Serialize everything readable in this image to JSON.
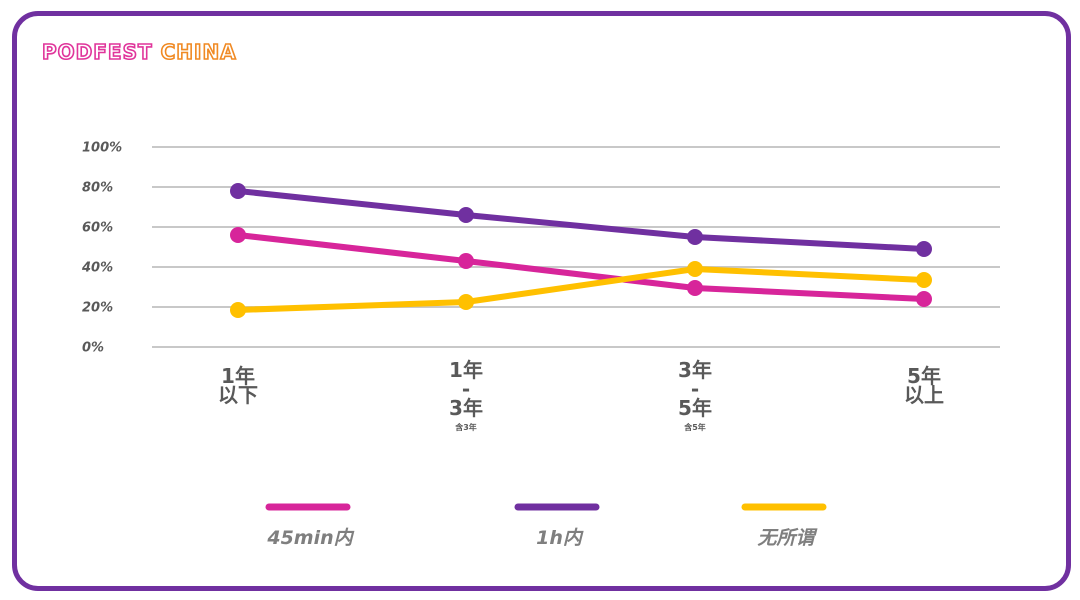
{
  "brand": {
    "part1": "PODFEST",
    "part2": "CHINA"
  },
  "colors": {
    "frame": "#7030a0",
    "brand_part1": "#e0359b",
    "brand_part2": "#f08a24",
    "grid": "#c8c8c8",
    "tick_text": "#595959",
    "legend_text": "#7f7f7f"
  },
  "chart_data": {
    "type": "line",
    "title": "",
    "xlabel": "",
    "ylabel": "",
    "ylim": [
      0,
      100
    ],
    "grid": true,
    "legend_position": "bottom",
    "y_ticks": [
      {
        "value": 0,
        "label": "0%"
      },
      {
        "value": 20,
        "label": "20%"
      },
      {
        "value": 40,
        "label": "40%"
      },
      {
        "value": 60,
        "label": "60%"
      },
      {
        "value": 80,
        "label": "80%"
      },
      {
        "value": 100,
        "label": "100%"
      }
    ],
    "categories": [
      {
        "lines": [
          "1年",
          "以下"
        ],
        "note": ""
      },
      {
        "lines": [
          "1年",
          "-",
          "3年"
        ],
        "note": "含3年"
      },
      {
        "lines": [
          "3年",
          "-",
          "5年"
        ],
        "note": "含5年"
      },
      {
        "lines": [
          "5年",
          "以上"
        ],
        "note": ""
      }
    ],
    "series": [
      {
        "name": "45min内",
        "color": "#d7259a",
        "values": [
          56,
          43,
          29.5,
          24
        ]
      },
      {
        "name": "1h内",
        "color": "#7030a0",
        "values": [
          78,
          66,
          55,
          49
        ]
      },
      {
        "name": "无所谓",
        "color": "#ffc000",
        "values": [
          18.5,
          22.5,
          39,
          33.5
        ]
      }
    ]
  }
}
